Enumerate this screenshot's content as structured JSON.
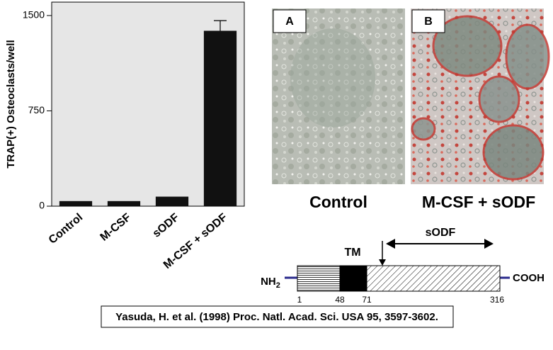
{
  "chart_data": {
    "type": "bar",
    "ylabel": "TRAP(+) Osteoclasts/well",
    "categories": [
      "Control",
      "M-CSF",
      "sODF",
      "M-CSF + sODF"
    ],
    "values": [
      40,
      40,
      75,
      1380
    ],
    "errors": [
      null,
      null,
      null,
      80
    ],
    "color": "#111111",
    "ylim": [
      0,
      1600
    ],
    "yticks": [
      0,
      750,
      1500
    ],
    "grid": false
  },
  "micrographs": [
    {
      "panel": "A",
      "caption": "Control"
    },
    {
      "panel": "B",
      "caption": "M-CSF + sODF"
    }
  ],
  "diagram": {
    "n_terminus": "NH",
    "n_subscript": "2",
    "c_terminus": "COOH",
    "tm_label": "TM",
    "soluble_label": "sODF",
    "positions": [
      1,
      48,
      71,
      316
    ]
  },
  "citation": "Yasuda, H. et al. (1998) Proc. Natl. Acad. Sci. USA 95, 3597-3602."
}
